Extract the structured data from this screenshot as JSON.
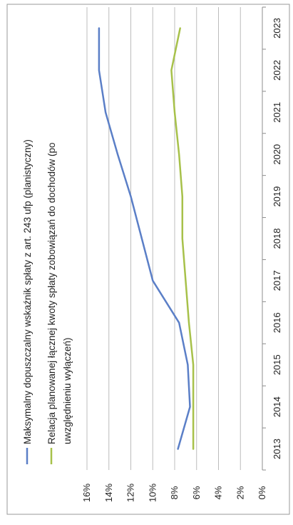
{
  "chart_data": {
    "type": "line",
    "title": "",
    "x": [
      "2013",
      "2014",
      "2015",
      "2016",
      "2017",
      "2018",
      "2019",
      "2020",
      "2021",
      "2022",
      "2023"
    ],
    "y_ticks": [
      "0%",
      "2%",
      "4%",
      "6%",
      "8%",
      "10%",
      "12%",
      "14%",
      "16%"
    ],
    "ylim": [
      0,
      16
    ],
    "grid": true,
    "legend_position": "top",
    "orientation": "rotated 90° clockwise (page scanned sideways)",
    "series": [
      {
        "name": "Maksymalny dopuszczalny wskaźnik spłaty z art. 243 ufp (planistyczny)",
        "color": "#5b7fc7",
        "values": [
          7.7,
          6.6,
          6.8,
          7.6,
          10.0,
          11.0,
          12.0,
          13.2,
          14.3,
          14.9,
          14.9
        ]
      },
      {
        "name": "Relacja planowanej łącznej kwoty spłaty zobowiązań do dochodów (po uwzględnieniu wyłączeń)",
        "color": "#a7c14a",
        "values": [
          6.3,
          6.3,
          6.3,
          6.7,
          7.0,
          7.3,
          7.3,
          7.6,
          8.0,
          8.3,
          7.5
        ]
      }
    ]
  }
}
